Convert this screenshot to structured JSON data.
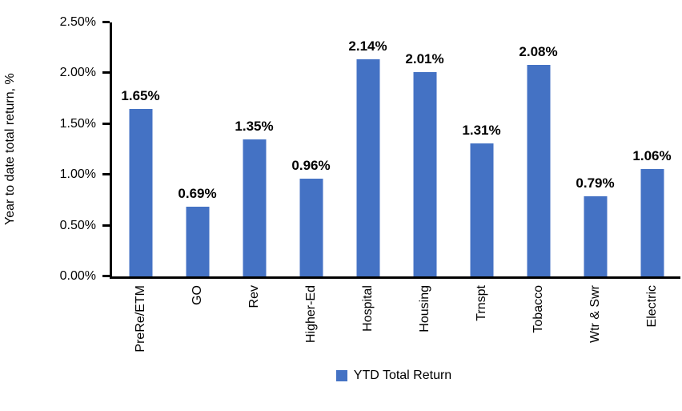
{
  "chart_data": {
    "type": "bar",
    "categories": [
      "PreRe/ETM",
      "GO",
      "Rev",
      "Higher-Ed",
      "Hospital",
      "Housing",
      "Trnspt",
      "Tobacco",
      "Wtr & Swr",
      "Electric"
    ],
    "values": [
      1.65,
      0.69,
      1.35,
      0.96,
      2.14,
      2.01,
      1.31,
      2.08,
      0.79,
      1.06
    ],
    "value_labels": [
      "1.65%",
      "0.69%",
      "1.35%",
      "0.96%",
      "2.14%",
      "2.01%",
      "1.31%",
      "2.08%",
      "0.79%",
      "1.06%"
    ],
    "title": "",
    "xlabel": "",
    "ylabel": "Year to date total return, %",
    "ylim": [
      0,
      2.5
    ],
    "y_ticks": [
      "0.00%",
      "0.50%",
      "1.00%",
      "1.50%",
      "2.00%",
      "2.50%"
    ],
    "grid": false,
    "legend": {
      "label": "YTD Total Return",
      "position": "bottom"
    },
    "bar_color": "#4472C4",
    "axis_color": "#000000"
  }
}
